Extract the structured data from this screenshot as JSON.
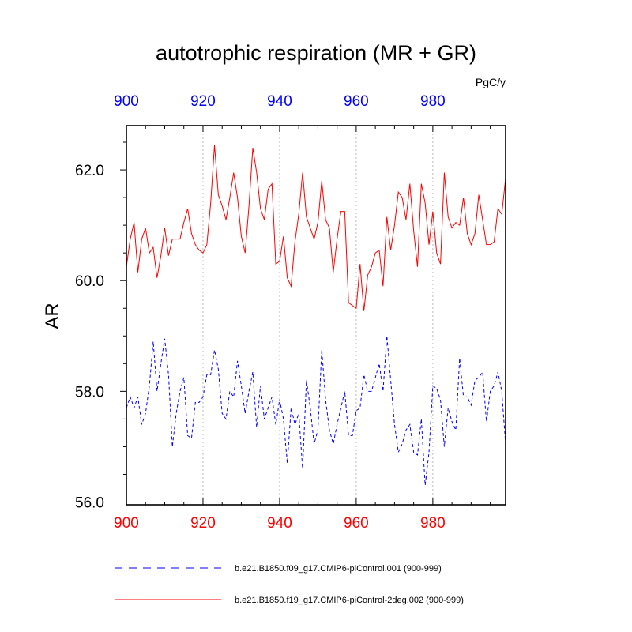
{
  "chart_data": {
    "type": "line",
    "title": "autotrophic respiration (MR + GR)",
    "units": "PgC/y",
    "ylabel": "AR",
    "xlabel": "",
    "xlim": [
      900,
      999
    ],
    "ylim": [
      55.95,
      62.8
    ],
    "x_ticks": [
      900,
      920,
      940,
      960,
      980
    ],
    "x_tick_labels": [
      "900",
      "920",
      "940",
      "960",
      "980"
    ],
    "y_ticks": [
      56,
      58,
      60,
      62
    ],
    "y_tick_labels": [
      "56.0",
      "58.0",
      "60.0",
      "62.0"
    ],
    "y_minor_ticks": [
      56.5,
      57,
      57.5,
      58.5,
      59,
      59.5,
      60.5,
      61,
      61.5,
      62.5
    ],
    "vertical_grid_at": [
      920,
      940,
      960,
      980
    ],
    "x_start": 900,
    "colors": {
      "bottom_axis": "#ff0000",
      "top_axis": "#0000ff"
    },
    "series": [
      {
        "name": "b.e21.B1850.f09_g17.CMIP6-piControl.001 (900-999)",
        "color": "#0000ff",
        "dash": "dashed",
        "values": [
          57.7,
          57.9,
          57.7,
          57.9,
          57.4,
          57.6,
          58.1,
          58.9,
          58.0,
          58.5,
          58.95,
          58.3,
          57.0,
          57.6,
          58.0,
          58.25,
          57.2,
          57.15,
          57.8,
          57.8,
          57.9,
          58.3,
          58.3,
          58.75,
          58.4,
          57.6,
          57.5,
          58.0,
          57.9,
          58.55,
          58.1,
          57.6,
          58.0,
          58.35,
          57.35,
          58.1,
          57.5,
          57.7,
          57.9,
          57.4,
          57.85,
          57.5,
          56.7,
          57.7,
          57.4,
          57.6,
          56.6,
          58.2,
          57.7,
          57.05,
          57.3,
          58.75,
          57.85,
          57.3,
          57.05,
          57.4,
          57.7,
          58.0,
          57.2,
          57.2,
          57.65,
          57.7,
          58.3,
          58.0,
          58.0,
          58.25,
          58.5,
          58.0,
          59.0,
          58.2,
          57.4,
          56.9,
          57.05,
          57.3,
          57.4,
          56.9,
          56.85,
          57.5,
          56.3,
          56.9,
          58.1,
          58.05,
          57.85,
          57.0,
          57.7,
          57.45,
          57.3,
          58.6,
          57.9,
          57.9,
          57.75,
          58.2,
          58.25,
          58.35,
          57.45,
          58.0,
          58.1,
          58.35,
          58.0,
          57.05
        ]
      },
      {
        "name": "b.e21.B1850.f19_g17.CMIP6-piControl-2deg.002 (900-999)",
        "color": "#ff0000",
        "dash": "solid",
        "values": [
          60.25,
          60.75,
          61.05,
          60.15,
          60.75,
          60.95,
          60.5,
          60.6,
          60.05,
          60.45,
          60.95,
          60.45,
          60.75,
          60.75,
          60.75,
          61.05,
          61.3,
          60.85,
          60.65,
          60.55,
          60.5,
          60.65,
          61.4,
          62.45,
          61.55,
          61.35,
          61.1,
          61.5,
          61.95,
          61.5,
          60.8,
          60.5,
          61.35,
          62.4,
          61.95,
          61.3,
          61.1,
          61.65,
          61.75,
          60.3,
          60.35,
          60.8,
          60.05,
          59.9,
          60.7,
          61.2,
          61.95,
          61.15,
          60.95,
          60.75,
          61.05,
          61.8,
          61.1,
          60.95,
          60.15,
          60.75,
          61.25,
          61.25,
          59.6,
          59.55,
          59.5,
          60.3,
          59.45,
          60.1,
          60.25,
          60.5,
          60.55,
          59.9,
          61.15,
          60.55,
          61.0,
          61.6,
          61.5,
          61.1,
          61.75,
          60.9,
          60.25,
          61.75,
          61.4,
          60.65,
          61.25,
          60.5,
          60.3,
          61.95,
          61.15,
          60.95,
          61.05,
          61.0,
          61.5,
          60.85,
          60.65,
          60.85,
          61.55,
          61.1,
          60.65,
          60.65,
          60.7,
          61.3,
          61.2,
          61.85
        ]
      }
    ]
  }
}
